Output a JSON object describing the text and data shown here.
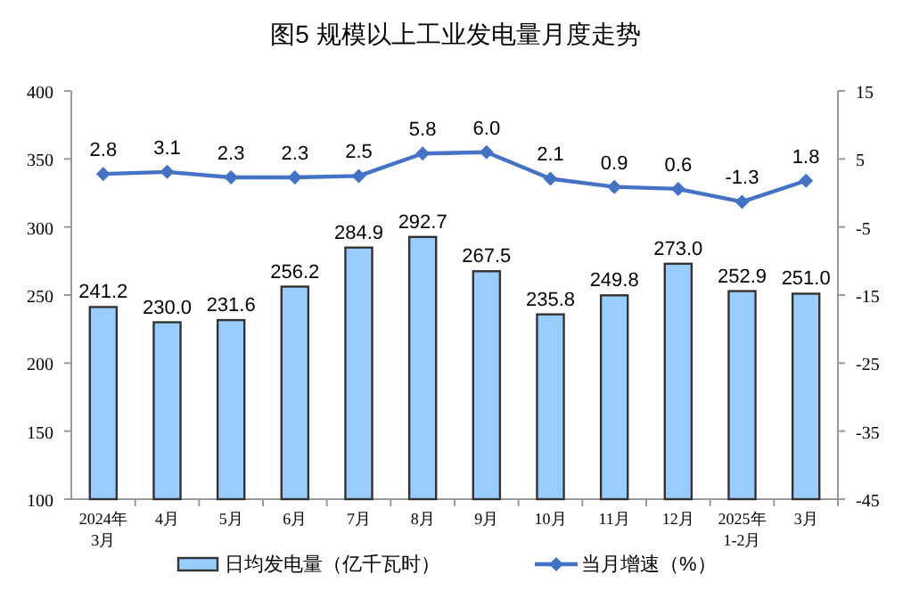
{
  "chart_data": {
    "type": "bar",
    "title": "图5  规模以上工业发电量月度走势",
    "categories": [
      "2024年\n3月",
      "4月",
      "5月",
      "6月",
      "7月",
      "8月",
      "9月",
      "10月",
      "11月",
      "12月",
      "2025年\n1-2月",
      "3月"
    ],
    "series": [
      {
        "name": "日均发电量（亿千瓦时）",
        "color": "#99ccff",
        "values": [
          241.2,
          230.0,
          231.6,
          256.2,
          284.9,
          292.7,
          267.5,
          235.8,
          249.8,
          273.0,
          252.9,
          251.0
        ],
        "value_labels": [
          "241.2",
          "230.0",
          "231.6",
          "256.2",
          "284.9",
          "292.7",
          "267.5",
          "235.8",
          "249.8",
          "273.0",
          "252.9",
          "251.0"
        ]
      },
      {
        "name": "当月增速（%）",
        "type": "line",
        "axis": "y2",
        "color": "#4472c4",
        "marker": "diamond",
        "values": [
          2.8,
          3.1,
          2.3,
          2.3,
          2.5,
          5.8,
          6.0,
          2.1,
          0.9,
          0.6,
          -1.3,
          1.8
        ],
        "value_labels": [
          "2.8",
          "3.1",
          "2.3",
          "2.3",
          "2.5",
          "5.8",
          "6.0",
          "2.1",
          "0.9",
          "0.6",
          "-1.3",
          "1.8"
        ]
      }
    ],
    "ylim": [
      100,
      400
    ],
    "yticks": [
      100,
      150,
      200,
      250,
      300,
      350,
      400
    ],
    "y2lim": [
      -45,
      15
    ],
    "y2ticks": [
      -45,
      -35,
      -25,
      -15,
      -5,
      5,
      15
    ],
    "legend": "bottom",
    "grid": false
  }
}
